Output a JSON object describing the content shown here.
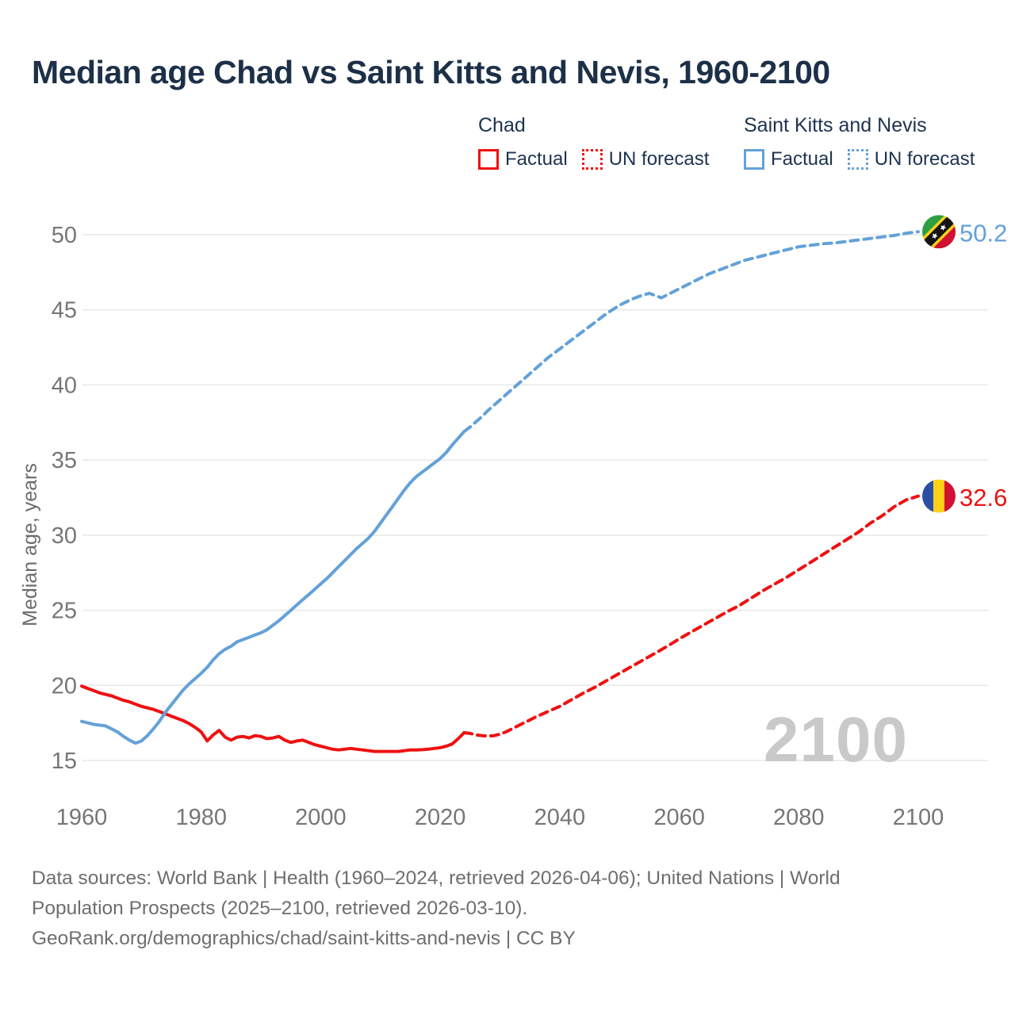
{
  "title": "Median age Chad vs Saint Kitts and Nevis, 1960-2100",
  "legend": {
    "groups": [
      {
        "name": "Chad",
        "color": "#ee1111",
        "items": [
          {
            "label": "Factual",
            "style": "solid"
          },
          {
            "label": "UN forecast",
            "style": "dotted"
          }
        ]
      },
      {
        "name": "Saint Kitts and Nevis",
        "color": "#64a1d8",
        "items": [
          {
            "label": "Factual",
            "style": "solid"
          },
          {
            "label": "UN forecast",
            "style": "dotted"
          }
        ]
      }
    ]
  },
  "chart_data": {
    "type": "line",
    "title": "Median age Chad vs Saint Kitts and Nevis, 1960-2100",
    "xlabel": "",
    "ylabel": "Median age, years",
    "xlim": [
      1953,
      2112
    ],
    "ylim": [
      13.5,
      51.5
    ],
    "grid": true,
    "legend_position": "top-right",
    "watermark": "2100",
    "yticks": [
      15,
      20,
      25,
      30,
      35,
      40,
      45,
      50
    ],
    "xticks": [
      1960,
      1980,
      2000,
      2020,
      2040,
      2060,
      2080,
      2100
    ],
    "series": [
      {
        "id": "chad-factual",
        "name": "Chad — Factual",
        "color": "#ee1111",
        "style": "solid",
        "points": [
          [
            1960,
            19.95
          ],
          [
            1961,
            19.8
          ],
          [
            1962,
            19.65
          ],
          [
            1963,
            19.5
          ],
          [
            1964,
            19.4
          ],
          [
            1965,
            19.3
          ],
          [
            1966,
            19.15
          ],
          [
            1967,
            19.0
          ],
          [
            1968,
            18.9
          ],
          [
            1969,
            18.75
          ],
          [
            1970,
            18.6
          ],
          [
            1971,
            18.5
          ],
          [
            1972,
            18.4
          ],
          [
            1973,
            18.25
          ],
          [
            1974,
            18.1
          ],
          [
            1975,
            17.95
          ],
          [
            1976,
            17.8
          ],
          [
            1977,
            17.65
          ],
          [
            1978,
            17.45
          ],
          [
            1979,
            17.2
          ],
          [
            1980,
            16.9
          ],
          [
            1981,
            16.3
          ],
          [
            1982,
            16.7
          ],
          [
            1983,
            17.0
          ],
          [
            1984,
            16.55
          ],
          [
            1985,
            16.35
          ],
          [
            1986,
            16.55
          ],
          [
            1987,
            16.6
          ],
          [
            1988,
            16.5
          ],
          [
            1989,
            16.65
          ],
          [
            1990,
            16.6
          ],
          [
            1991,
            16.45
          ],
          [
            1992,
            16.5
          ],
          [
            1993,
            16.6
          ],
          [
            1994,
            16.35
          ],
          [
            1995,
            16.2
          ],
          [
            1996,
            16.3
          ],
          [
            1997,
            16.35
          ],
          [
            1998,
            16.2
          ],
          [
            1999,
            16.05
          ],
          [
            2000,
            15.95
          ],
          [
            2001,
            15.85
          ],
          [
            2002,
            15.75
          ],
          [
            2003,
            15.7
          ],
          [
            2004,
            15.75
          ],
          [
            2005,
            15.8
          ],
          [
            2006,
            15.75
          ],
          [
            2007,
            15.7
          ],
          [
            2008,
            15.65
          ],
          [
            2009,
            15.6
          ],
          [
            2010,
            15.6
          ],
          [
            2011,
            15.6
          ],
          [
            2012,
            15.6
          ],
          [
            2013,
            15.6
          ],
          [
            2014,
            15.65
          ],
          [
            2015,
            15.7
          ],
          [
            2016,
            15.7
          ],
          [
            2017,
            15.72
          ],
          [
            2018,
            15.75
          ],
          [
            2019,
            15.8
          ],
          [
            2020,
            15.85
          ],
          [
            2021,
            15.95
          ],
          [
            2022,
            16.1
          ],
          [
            2023,
            16.45
          ],
          [
            2024,
            16.85
          ]
        ]
      },
      {
        "id": "chad-forecast",
        "name": "Chad — UN forecast",
        "color": "#ee1111",
        "style": "dashed",
        "end_label": "32.6",
        "end_marker_id": "flag-chad",
        "end_label_id": "endlabel-chad",
        "points": [
          [
            2024,
            16.85
          ],
          [
            2025,
            16.8
          ],
          [
            2026,
            16.7
          ],
          [
            2027,
            16.65
          ],
          [
            2028,
            16.62
          ],
          [
            2029,
            16.65
          ],
          [
            2030,
            16.75
          ],
          [
            2031,
            16.9
          ],
          [
            2032,
            17.1
          ],
          [
            2033,
            17.3
          ],
          [
            2034,
            17.5
          ],
          [
            2035,
            17.7
          ],
          [
            2036,
            17.9
          ],
          [
            2038,
            18.25
          ],
          [
            2040,
            18.6
          ],
          [
            2042,
            19.05
          ],
          [
            2044,
            19.5
          ],
          [
            2046,
            19.9
          ],
          [
            2048,
            20.35
          ],
          [
            2050,
            20.8
          ],
          [
            2052,
            21.25
          ],
          [
            2054,
            21.7
          ],
          [
            2056,
            22.15
          ],
          [
            2058,
            22.6
          ],
          [
            2060,
            23.1
          ],
          [
            2062,
            23.55
          ],
          [
            2064,
            24.0
          ],
          [
            2066,
            24.45
          ],
          [
            2068,
            24.9
          ],
          [
            2070,
            25.3
          ],
          [
            2072,
            25.8
          ],
          [
            2074,
            26.3
          ],
          [
            2076,
            26.75
          ],
          [
            2078,
            27.2
          ],
          [
            2080,
            27.7
          ],
          [
            2082,
            28.2
          ],
          [
            2084,
            28.7
          ],
          [
            2086,
            29.2
          ],
          [
            2088,
            29.7
          ],
          [
            2090,
            30.2
          ],
          [
            2092,
            30.8
          ],
          [
            2094,
            31.3
          ],
          [
            2096,
            31.9
          ],
          [
            2098,
            32.35
          ],
          [
            2100,
            32.6
          ]
        ]
      },
      {
        "id": "skn-factual",
        "name": "Saint Kitts and Nevis — Factual",
        "color": "#64a1d8",
        "style": "solid",
        "points": [
          [
            1960,
            17.6
          ],
          [
            1961,
            17.5
          ],
          [
            1962,
            17.4
          ],
          [
            1963,
            17.35
          ],
          [
            1964,
            17.3
          ],
          [
            1965,
            17.1
          ],
          [
            1966,
            16.9
          ],
          [
            1967,
            16.6
          ],
          [
            1968,
            16.35
          ],
          [
            1969,
            16.15
          ],
          [
            1970,
            16.3
          ],
          [
            1971,
            16.65
          ],
          [
            1972,
            17.1
          ],
          [
            1973,
            17.6
          ],
          [
            1974,
            18.2
          ],
          [
            1975,
            18.7
          ],
          [
            1976,
            19.2
          ],
          [
            1977,
            19.7
          ],
          [
            1978,
            20.1
          ],
          [
            1979,
            20.45
          ],
          [
            1980,
            20.8
          ],
          [
            1981,
            21.2
          ],
          [
            1982,
            21.7
          ],
          [
            1983,
            22.1
          ],
          [
            1984,
            22.4
          ],
          [
            1985,
            22.6
          ],
          [
            1986,
            22.9
          ],
          [
            1987,
            23.05
          ],
          [
            1988,
            23.2
          ],
          [
            1989,
            23.35
          ],
          [
            1990,
            23.5
          ],
          [
            1991,
            23.7
          ],
          [
            1992,
            24.0
          ],
          [
            1993,
            24.3
          ],
          [
            1994,
            24.65
          ],
          [
            1995,
            25.0
          ],
          [
            1996,
            25.35
          ],
          [
            1997,
            25.7
          ],
          [
            1998,
            26.05
          ],
          [
            1999,
            26.4
          ],
          [
            2000,
            26.75
          ],
          [
            2001,
            27.1
          ],
          [
            2002,
            27.5
          ],
          [
            2003,
            27.9
          ],
          [
            2004,
            28.3
          ],
          [
            2005,
            28.7
          ],
          [
            2006,
            29.1
          ],
          [
            2007,
            29.45
          ],
          [
            2008,
            29.8
          ],
          [
            2009,
            30.25
          ],
          [
            2010,
            30.8
          ],
          [
            2011,
            31.35
          ],
          [
            2012,
            31.9
          ],
          [
            2013,
            32.45
          ],
          [
            2014,
            33.0
          ],
          [
            2015,
            33.5
          ],
          [
            2016,
            33.9
          ],
          [
            2017,
            34.2
          ],
          [
            2018,
            34.5
          ],
          [
            2019,
            34.8
          ],
          [
            2020,
            35.1
          ],
          [
            2021,
            35.5
          ],
          [
            2022,
            36.0
          ],
          [
            2023,
            36.45
          ],
          [
            2024,
            36.9
          ]
        ]
      },
      {
        "id": "skn-forecast",
        "name": "Saint Kitts and Nevis — UN forecast",
        "color": "#64a1d8",
        "style": "dashed",
        "end_label": "50.2",
        "end_marker_id": "flag-skn",
        "end_label_id": "endlabel-skn",
        "points": [
          [
            2024,
            36.9
          ],
          [
            2025,
            37.2
          ],
          [
            2026,
            37.55
          ],
          [
            2027,
            37.9
          ],
          [
            2028,
            38.3
          ],
          [
            2029,
            38.65
          ],
          [
            2030,
            39.0
          ],
          [
            2031,
            39.35
          ],
          [
            2032,
            39.7
          ],
          [
            2033,
            40.05
          ],
          [
            2034,
            40.4
          ],
          [
            2035,
            40.75
          ],
          [
            2036,
            41.1
          ],
          [
            2037,
            41.45
          ],
          [
            2038,
            41.8
          ],
          [
            2039,
            42.1
          ],
          [
            2040,
            42.4
          ],
          [
            2041,
            42.7
          ],
          [
            2042,
            43.0
          ],
          [
            2043,
            43.3
          ],
          [
            2044,
            43.6
          ],
          [
            2045,
            43.9
          ],
          [
            2046,
            44.2
          ],
          [
            2047,
            44.5
          ],
          [
            2048,
            44.8
          ],
          [
            2049,
            45.05
          ],
          [
            2050,
            45.3
          ],
          [
            2051,
            45.5
          ],
          [
            2052,
            45.7
          ],
          [
            2053,
            45.85
          ],
          [
            2054,
            46.0
          ],
          [
            2055,
            46.1
          ],
          [
            2056,
            45.95
          ],
          [
            2057,
            45.8
          ],
          [
            2058,
            46.0
          ],
          [
            2059,
            46.2
          ],
          [
            2060,
            46.4
          ],
          [
            2061,
            46.6
          ],
          [
            2062,
            46.8
          ],
          [
            2063,
            47.0
          ],
          [
            2064,
            47.2
          ],
          [
            2065,
            47.4
          ],
          [
            2066,
            47.55
          ],
          [
            2067,
            47.7
          ],
          [
            2068,
            47.85
          ],
          [
            2069,
            48.0
          ],
          [
            2070,
            48.15
          ],
          [
            2071,
            48.3
          ],
          [
            2072,
            48.4
          ],
          [
            2073,
            48.5
          ],
          [
            2074,
            48.6
          ],
          [
            2075,
            48.7
          ],
          [
            2076,
            48.8
          ],
          [
            2077,
            48.9
          ],
          [
            2078,
            49.0
          ],
          [
            2079,
            49.1
          ],
          [
            2080,
            49.2
          ],
          [
            2082,
            49.3
          ],
          [
            2084,
            49.4
          ],
          [
            2086,
            49.45
          ],
          [
            2088,
            49.55
          ],
          [
            2090,
            49.65
          ],
          [
            2092,
            49.75
          ],
          [
            2094,
            49.85
          ],
          [
            2096,
            49.95
          ],
          [
            2098,
            50.1
          ],
          [
            2100,
            50.2
          ]
        ]
      }
    ]
  },
  "footer": {
    "line1": "Data sources: World Bank | Health (1960–2024, retrieved 2026-04-06); United Nations | World",
    "line2": "Population Prospects (2025–2100, retrieved 2026-03-10).",
    "line3": "GeoRank.org/demographics/chad/saint-kitts-and-nevis | CC BY"
  }
}
